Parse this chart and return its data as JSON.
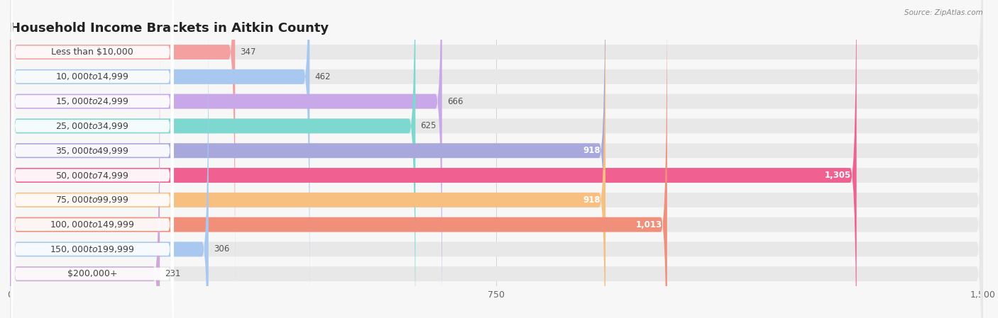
{
  "title": "Household Income Brackets in Aitkin County",
  "source": "Source: ZipAtlas.com",
  "categories": [
    "Less than $10,000",
    "$10,000 to $14,999",
    "$15,000 to $24,999",
    "$25,000 to $34,999",
    "$35,000 to $49,999",
    "$50,000 to $74,999",
    "$75,000 to $99,999",
    "$100,000 to $149,999",
    "$150,000 to $199,999",
    "$200,000+"
  ],
  "values": [
    347,
    462,
    666,
    625,
    918,
    1305,
    918,
    1013,
    306,
    231
  ],
  "bar_colors": [
    "#F4A0A0",
    "#A8C8F0",
    "#C8A8E8",
    "#7DD8D0",
    "#A8A8DC",
    "#F06090",
    "#F8C080",
    "#F0907A",
    "#A8C8F0",
    "#D0A8D8"
  ],
  "dot_colors": [
    "#F06060",
    "#6090D0",
    "#9060C0",
    "#30B0A0",
    "#6060C0",
    "#E0206080",
    "#F09030",
    "#E06050",
    "#6090D0",
    "#9060B0"
  ],
  "xlim": [
    0,
    1500
  ],
  "xticks": [
    0,
    750,
    1500
  ],
  "background_color": "#f7f7f7",
  "bar_background_color": "#e8e8e8",
  "title_fontsize": 13,
  "label_fontsize": 9,
  "value_fontsize": 8.5,
  "value_inside_threshold": 750
}
